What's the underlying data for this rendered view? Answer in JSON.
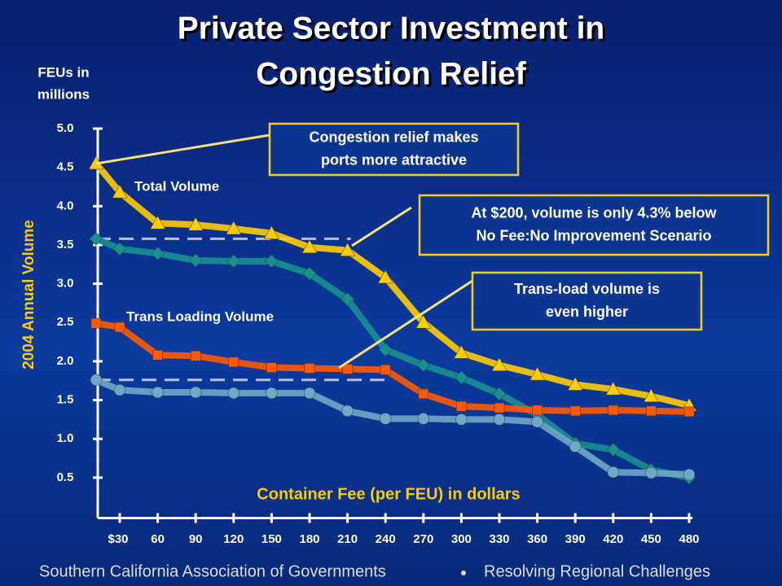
{
  "chart_data": {
    "type": "line",
    "title": [
      "Private Sector Investment in",
      "Congestion Relief"
    ],
    "y_units": [
      "FEUs in",
      "millions"
    ],
    "y_label": "2004 Annual Volume",
    "x_label": "Container Fee (per FEU) in dollars",
    "categories": [
      null,
      "$30",
      "60",
      "90",
      "120",
      "150",
      "180",
      "210",
      "240",
      "270",
      "300",
      "330",
      "360",
      "390",
      "420",
      "450",
      "480"
    ],
    "series": [
      {
        "name": "Total Volume",
        "color": "#ffcc00",
        "marker": "triangle",
        "values": [
          4.55,
          4.18,
          3.78,
          3.76,
          3.71,
          3.65,
          3.47,
          3.43,
          3.08,
          2.5,
          2.11,
          1.95,
          1.83,
          1.7,
          1.64,
          1.55,
          1.43
        ]
      },
      {
        "color": "#1a8f8f",
        "marker": "diamond",
        "values": [
          3.58,
          3.45,
          3.39,
          3.3,
          3.29,
          3.29,
          3.13,
          2.8,
          2.15,
          1.95,
          1.79,
          1.58,
          1.31,
          0.94,
          0.86,
          0.6,
          0.5
        ]
      },
      {
        "name": "Trans Loading Volume",
        "color": "#ff5a00",
        "marker": "square",
        "values": [
          2.49,
          2.44,
          2.08,
          2.07,
          1.99,
          1.92,
          1.91,
          1.9,
          1.89,
          1.58,
          1.42,
          1.4,
          1.37,
          1.36,
          1.37,
          1.36,
          1.35
        ]
      },
      {
        "color": "#6fa8c8",
        "marker": "circle",
        "values": [
          1.76,
          1.63,
          1.6,
          1.6,
          1.59,
          1.59,
          1.59,
          1.36,
          1.26,
          1.26,
          1.25,
          1.25,
          1.22,
          0.9,
          0.57,
          0.56,
          0.54
        ]
      }
    ],
    "ylim": [
      0,
      5
    ],
    "yticks": [
      0.5,
      {
        "value": 1,
        "label": "1.0"
      },
      1.5,
      {
        "value": 2,
        "label": "2.0"
      },
      2.5,
      {
        "value": 3,
        "label": "3.0"
      },
      3.5,
      {
        "value": 4,
        "label": "4.0"
      },
      4.5,
      {
        "value": 5,
        "label": "5.0"
      }
    ],
    "annotations": [
      {
        "lines": [
          "Congestion relief makes",
          "ports more attractive"
        ]
      },
      {
        "lines": [
          "At $200, volume is only 4.3% below",
          "No Fee:No Improvement  Scenario"
        ]
      },
      {
        "lines": [
          "Trans-load volume is",
          "even higher"
        ]
      }
    ],
    "footer": [
      "Southern California Association of Governments",
      "Resolving Regional Challenges"
    ]
  }
}
